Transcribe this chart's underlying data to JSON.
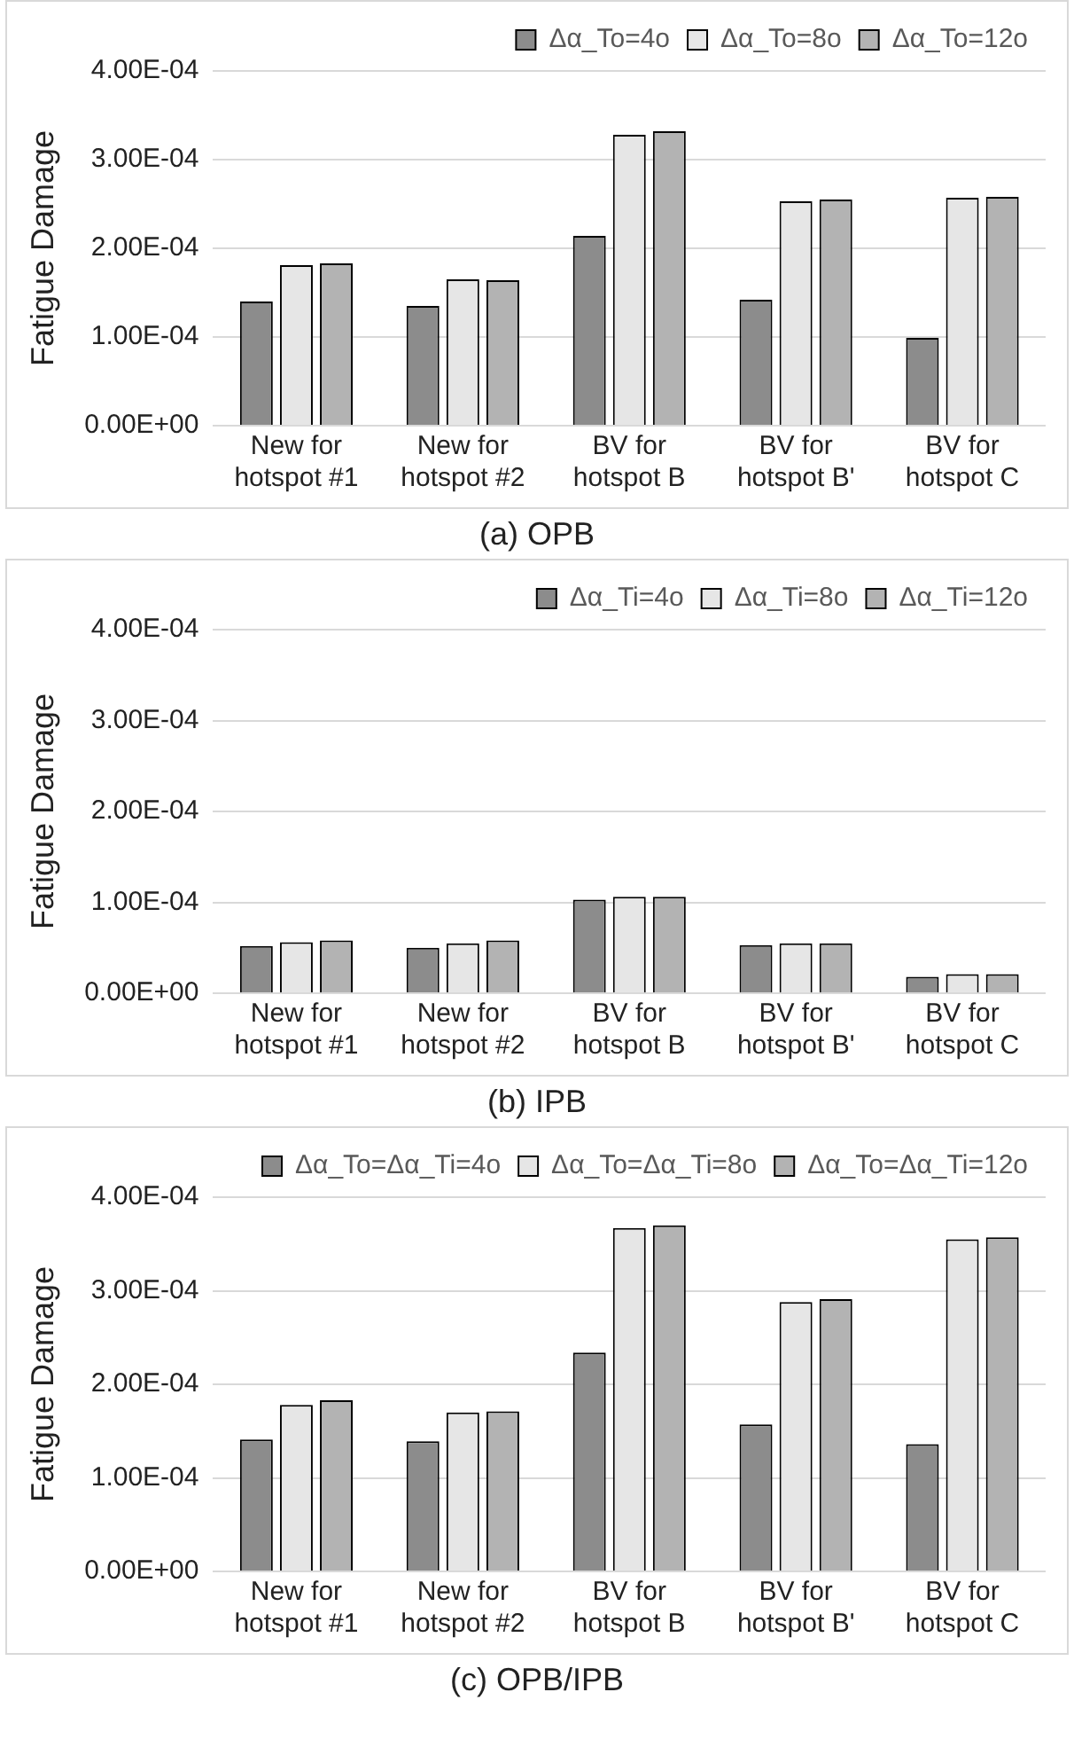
{
  "chart_data": [
    {
      "type": "bar",
      "title": "(a) OPB",
      "ylabel": "Fatigue Damage",
      "categories": [
        "New for hotspot #1",
        "New for hotspot #2",
        "BV for hotspot B",
        "BV for hotspot B'",
        "BV for hotspot C"
      ],
      "series": [
        {
          "name": "Δα_To=4o",
          "color": "#8c8c8c",
          "values": [
            0.00014,
            0.000135,
            0.000214,
            0.000142,
            9.9e-05
          ]
        },
        {
          "name": "Δα_To=8o",
          "color": "#e6e6e6",
          "values": [
            0.000181,
            0.000165,
            0.000328,
            0.000253,
            0.000257
          ]
        },
        {
          "name": "Δα_To=12o",
          "color": "#b3b3b3",
          "values": [
            0.000183,
            0.000164,
            0.000332,
            0.000255,
            0.000258
          ]
        }
      ],
      "ylim": [
        0,
        0.0004
      ],
      "yticks": [
        {
          "value": 0,
          "label": "0.00E+00"
        },
        {
          "value": 0.0001,
          "label": "1.00E-04"
        },
        {
          "value": 0.0002,
          "label": "2.00E-04"
        },
        {
          "value": 0.0003,
          "label": "3.00E-04"
        },
        {
          "value": 0.0004,
          "label": "4.00E-04"
        }
      ],
      "grid": "y",
      "legend": "top right"
    },
    {
      "type": "bar",
      "title": "(b) IPB",
      "ylabel": "Fatigue Damage",
      "categories": [
        "New for hotspot #1",
        "New for hotspot #2",
        "BV for hotspot B",
        "BV for hotspot B'",
        "BV for hotspot C"
      ],
      "series": [
        {
          "name": "Δα_Ti=4o",
          "color": "#8c8c8c",
          "values": [
            5.2e-05,
            5e-05,
            0.000103,
            5.3e-05,
            1.8e-05
          ]
        },
        {
          "name": "Δα_Ti=8o",
          "color": "#e6e6e6",
          "values": [
            5.6e-05,
            5.5e-05,
            0.000106,
            5.5e-05,
            2.1e-05
          ]
        },
        {
          "name": "Δα_Ti=12o",
          "color": "#b3b3b3",
          "values": [
            5.8e-05,
            5.8e-05,
            0.000106,
            5.5e-05,
            2.1e-05
          ]
        }
      ],
      "ylim": [
        0,
        0.0004
      ],
      "yticks": [
        {
          "value": 0,
          "label": "0.00E+00"
        },
        {
          "value": 0.0001,
          "label": "1.00E-04"
        },
        {
          "value": 0.0002,
          "label": "2.00E-04"
        },
        {
          "value": 0.0003,
          "label": "3.00E-04"
        },
        {
          "value": 0.0004,
          "label": "4.00E-04"
        }
      ],
      "grid": "y",
      "legend": "top right"
    },
    {
      "type": "bar",
      "title": "(c) OPB/IPB",
      "ylabel": "Fatigue Damage",
      "categories": [
        "New for hotspot #1",
        "New for hotspot #2",
        "BV for hotspot B",
        "BV for hotspot B'",
        "BV for hotspot C"
      ],
      "series": [
        {
          "name": "Δα_To=Δα_Ti=4o",
          "color": "#8c8c8c",
          "values": [
            0.000141,
            0.000139,
            0.000234,
            0.000157,
            0.000136
          ]
        },
        {
          "name": "Δα_To=Δα_Ti=8o",
          "color": "#e6e6e6",
          "values": [
            0.000178,
            0.00017,
            0.000367,
            0.000288,
            0.000355
          ]
        },
        {
          "name": "Δα_To=Δα_Ti=12o",
          "color": "#b3b3b3",
          "values": [
            0.000183,
            0.000171,
            0.00037,
            0.000291,
            0.000357
          ]
        }
      ],
      "ylim": [
        0,
        0.0004
      ],
      "yticks": [
        {
          "value": 0,
          "label": "0.00E+00"
        },
        {
          "value": 0.0001,
          "label": "1.00E-04"
        },
        {
          "value": 0.0002,
          "label": "2.00E-04"
        },
        {
          "value": 0.0003,
          "label": "3.00E-04"
        },
        {
          "value": 0.0004,
          "label": "4.00E-04"
        }
      ],
      "grid": "y",
      "legend": "top right"
    }
  ]
}
